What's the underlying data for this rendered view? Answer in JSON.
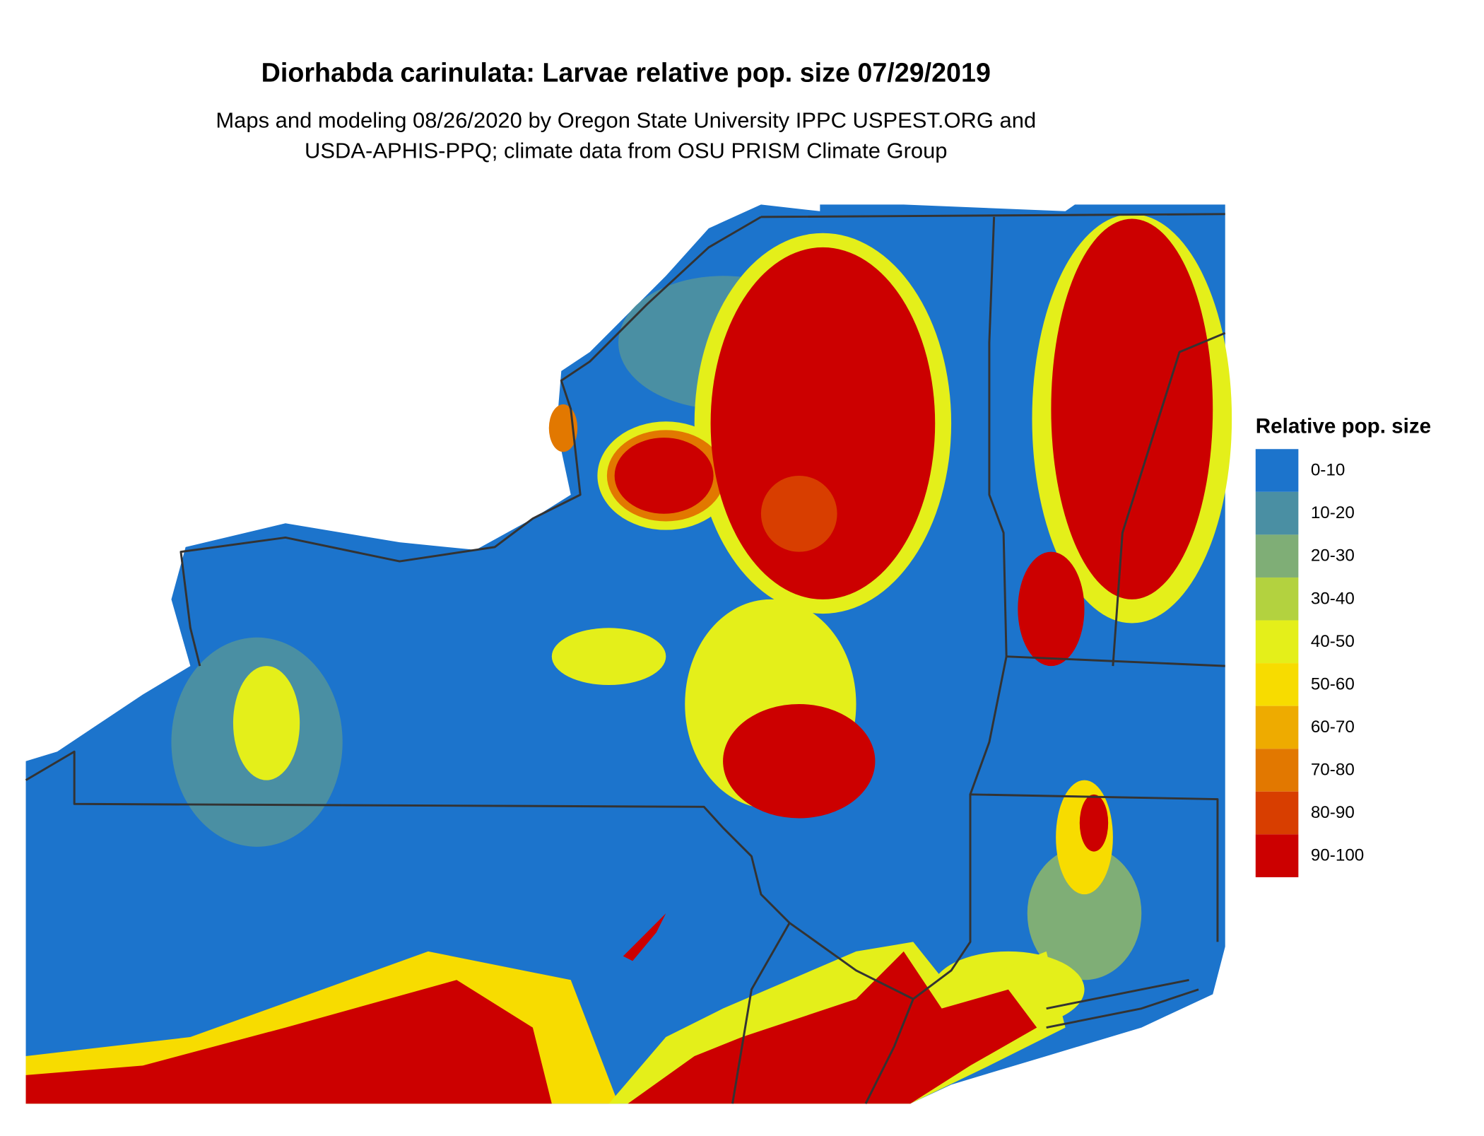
{
  "title": "Diorhabda carinulata: Larvae relative pop. size 07/29/2019",
  "subtitle": [
    "Maps and modeling 08/26/2020 by Oregon State University IPPC USPEST.ORG and",
    "USDA-APHIS-PPQ; climate data from OSU PRISM Climate Group"
  ],
  "legend": {
    "title": "Relative pop. size",
    "items": [
      {
        "label": "0-10",
        "color": "#1c74cc"
      },
      {
        "label": "10-20",
        "color": "#4a8fa3"
      },
      {
        "label": "20-30",
        "color": "#7fae76"
      },
      {
        "label": "30-40",
        "color": "#b3d23f"
      },
      {
        "label": "40-50",
        "color": "#e4ef1a"
      },
      {
        "label": "50-60",
        "color": "#f7dc00"
      },
      {
        "label": "60-70",
        "color": "#eeab00"
      },
      {
        "label": "70-80",
        "color": "#e27800"
      },
      {
        "label": "80-90",
        "color": "#d83e00"
      },
      {
        "label": "90-100",
        "color": "#cc0000"
      }
    ]
  }
}
